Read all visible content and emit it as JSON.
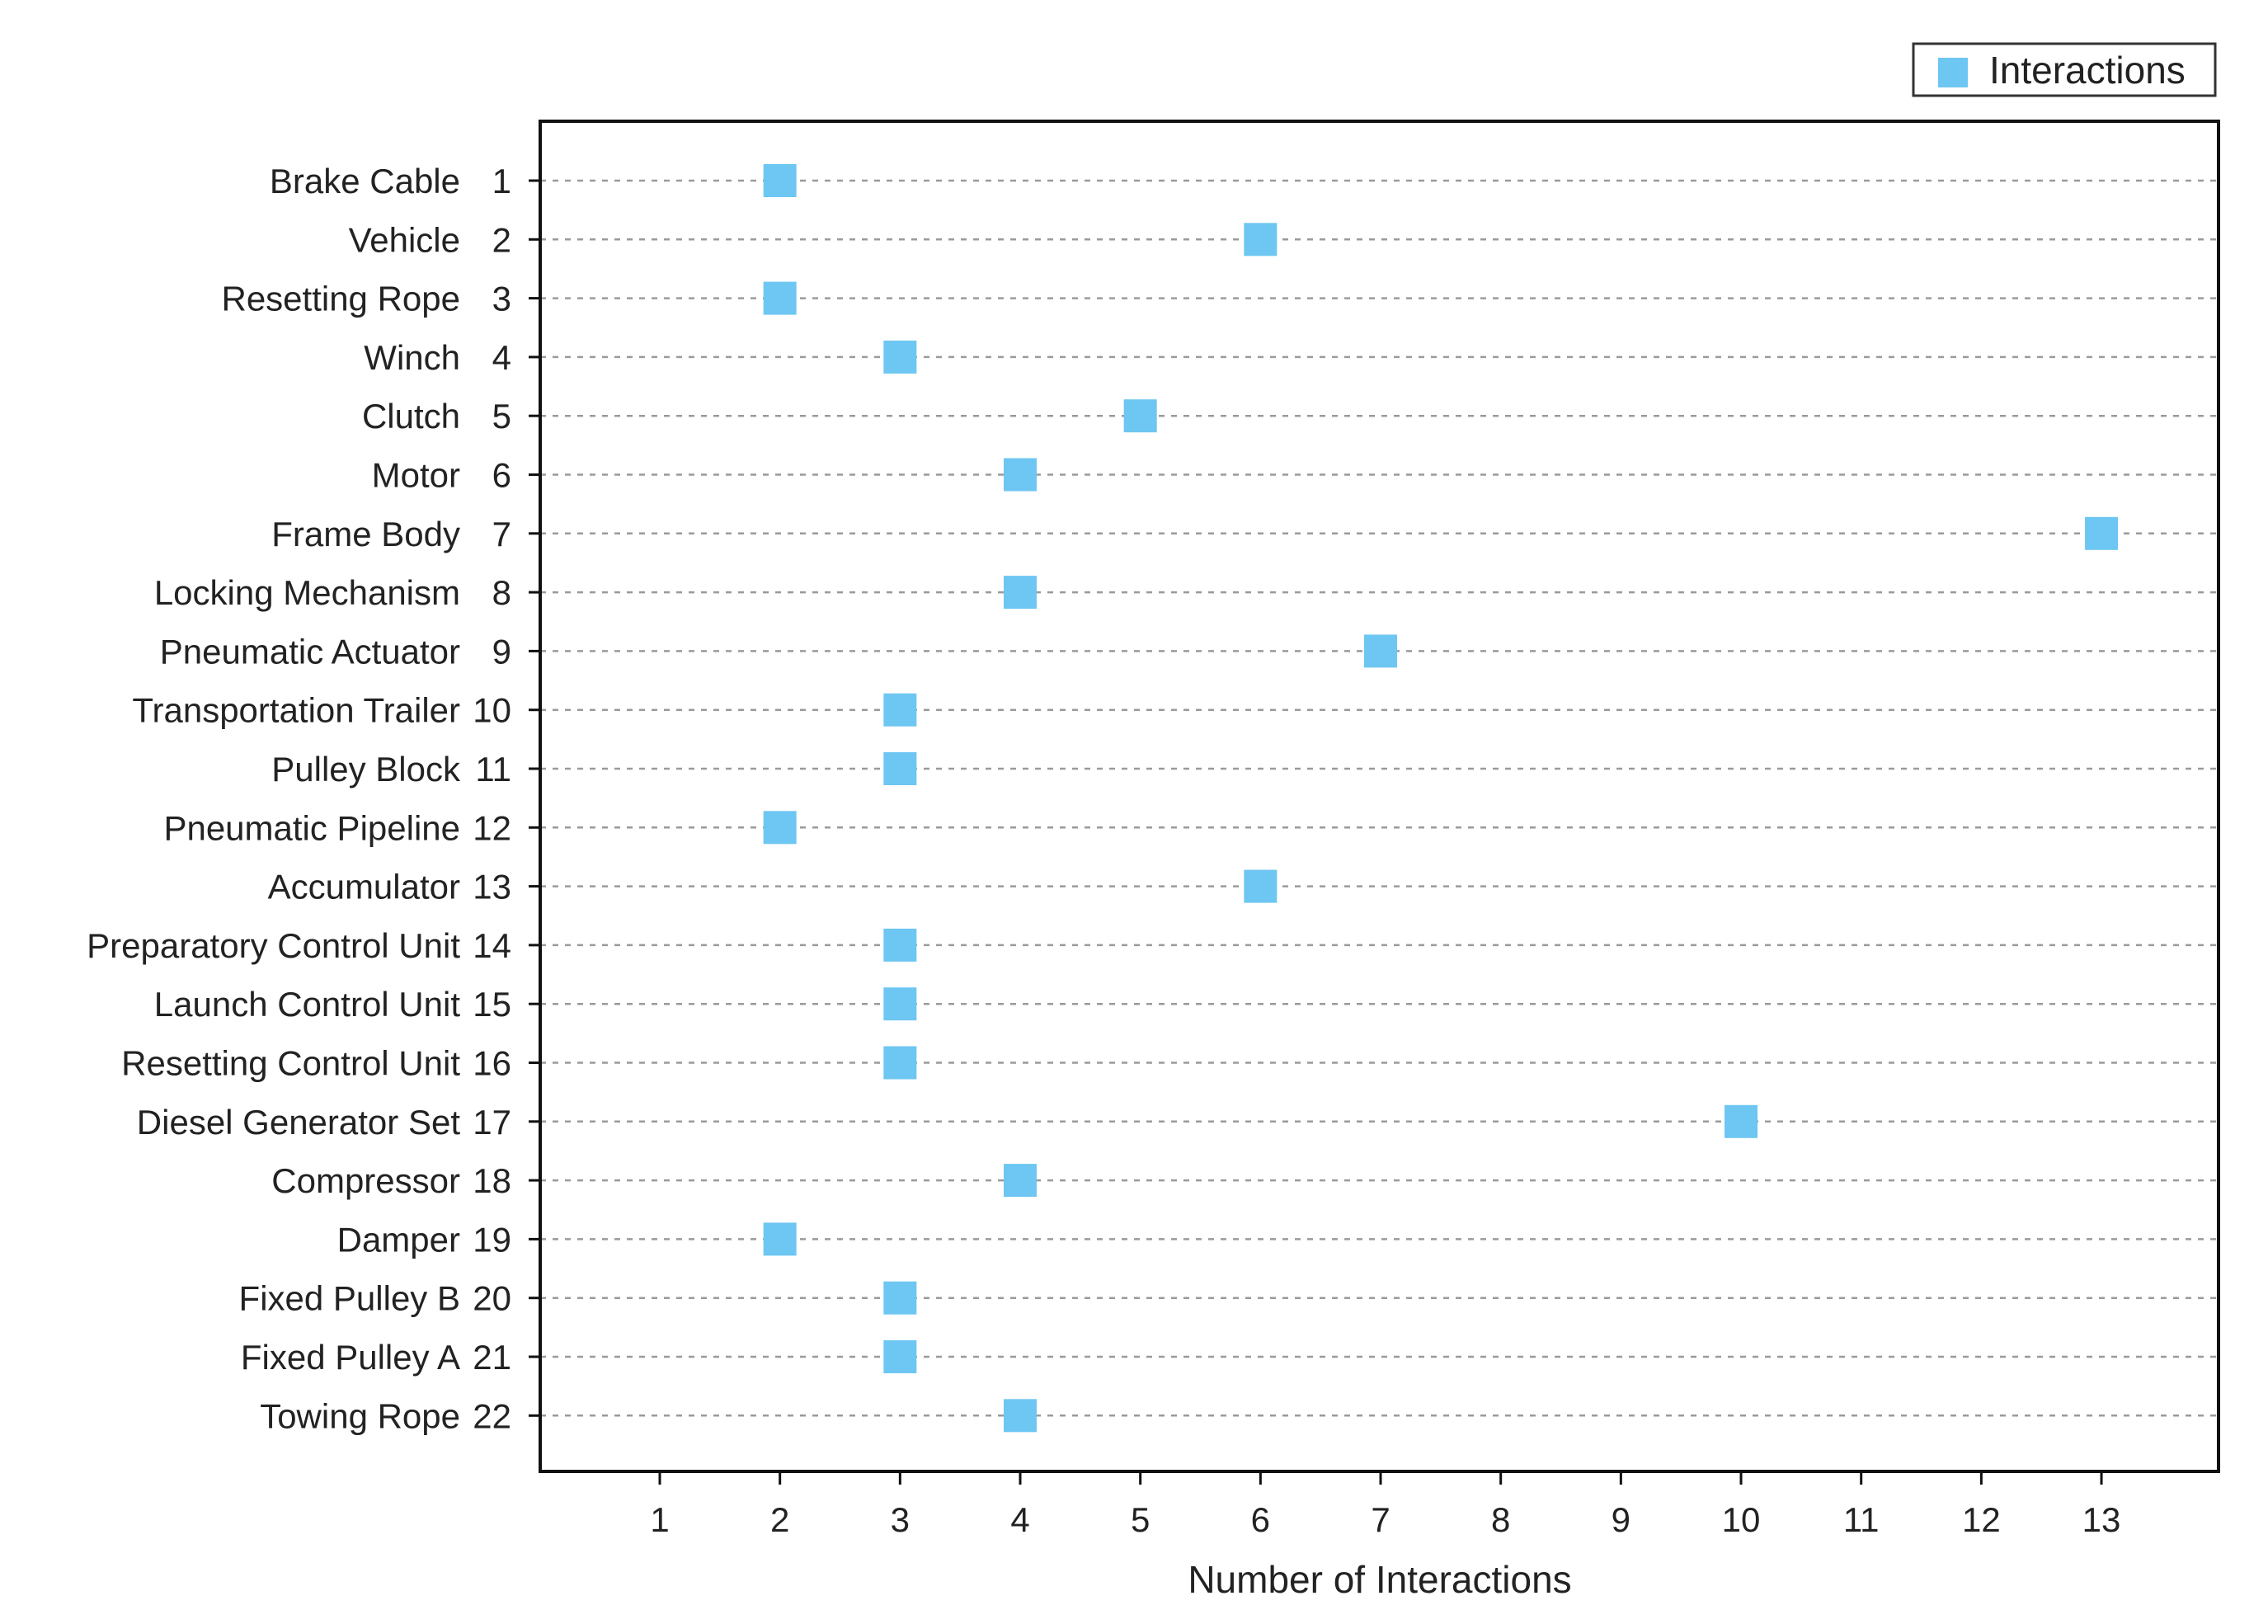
{
  "chart_data": {
    "type": "scatter",
    "title": "",
    "xlabel": "Number of Interactions",
    "ylabel": "",
    "xlim": [
      0,
      14
    ],
    "xticks": [
      1,
      2,
      3,
      4,
      5,
      6,
      7,
      8,
      9,
      10,
      11,
      12,
      13
    ],
    "grid": "horizontal dashed",
    "legend": {
      "position": "top-right",
      "entries": [
        "Interactions"
      ]
    },
    "series": [
      {
        "name": "Interactions",
        "color": "#6ec6f2",
        "marker": "square",
        "points": [
          {
            "label": "Brake Cable",
            "index": 1,
            "value": 2
          },
          {
            "label": "Vehicle",
            "index": 2,
            "value": 6
          },
          {
            "label": "Resetting Rope",
            "index": 3,
            "value": 2
          },
          {
            "label": "Winch",
            "index": 4,
            "value": 3
          },
          {
            "label": "Clutch",
            "index": 5,
            "value": 5
          },
          {
            "label": "Motor",
            "index": 6,
            "value": 4
          },
          {
            "label": "Frame Body",
            "index": 7,
            "value": 13
          },
          {
            "label": "Locking Mechanism",
            "index": 8,
            "value": 4
          },
          {
            "label": "Pneumatic Actuator",
            "index": 9,
            "value": 7
          },
          {
            "label": "Transportation Trailer",
            "index": 10,
            "value": 3
          },
          {
            "label": "Pulley Block",
            "index": 11,
            "value": 3
          },
          {
            "label": "Pneumatic Pipeline",
            "index": 12,
            "value": 2
          },
          {
            "label": "Accumulator",
            "index": 13,
            "value": 6
          },
          {
            "label": "Preparatory Control Unit",
            "index": 14,
            "value": 3
          },
          {
            "label": "Launch Control Unit",
            "index": 15,
            "value": 3
          },
          {
            "label": "Resetting Control Unit",
            "index": 16,
            "value": 3
          },
          {
            "label": "Diesel Generator Set",
            "index": 17,
            "value": 10
          },
          {
            "label": "Compressor",
            "index": 18,
            "value": 4
          },
          {
            "label": "Damper",
            "index": 19,
            "value": 2
          },
          {
            "label": "Fixed Pulley B",
            "index": 20,
            "value": 3
          },
          {
            "label": "Fixed Pulley A",
            "index": 21,
            "value": 3
          },
          {
            "label": "Towing Rope",
            "index": 22,
            "value": 4
          }
        ]
      }
    ]
  }
}
